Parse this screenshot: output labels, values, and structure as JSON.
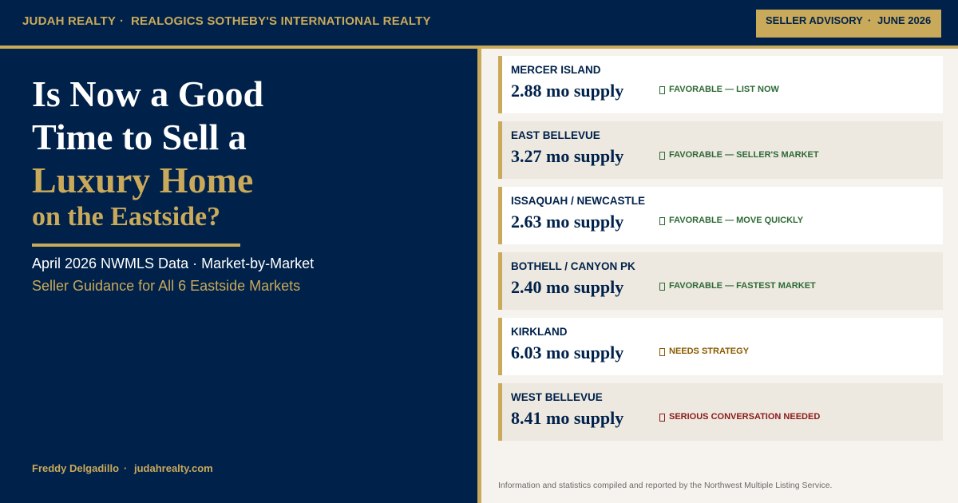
{
  "header": {
    "brand": "JUDAH REALTY",
    "separator": "·",
    "affiliate": "REALOGICS SOTHEBY'S INTERNATIONAL REALTY",
    "badge": {
      "label": "SELLER ADVISORY",
      "date": "JUNE 2026"
    }
  },
  "hero": {
    "title_lines": [
      "Is Now a Good",
      "Time to Sell a"
    ],
    "highlight": "Luxury Home",
    "tail": "on the Eastside?",
    "subtitle": "April 2026 NWMLS Data · Market-by-Market",
    "tagline": "Seller Guidance for All 6 Eastside Markets"
  },
  "footer": {
    "author": "Freddy Delgadillo",
    "site": "judahrealty.com"
  },
  "markets": [
    {
      "name": "MERCER ISLAND",
      "supply": "2.88 mo supply",
      "status": "FAVORABLE — LIST NOW",
      "status_color": "#2d6a35"
    },
    {
      "name": "EAST BELLEVUE",
      "supply": "3.27 mo supply",
      "status": "FAVORABLE — SELLER'S MARKET",
      "status_color": "#2d6a35"
    },
    {
      "name": "ISSAQUAH / NEWCASTLE",
      "supply": "2.63 mo supply",
      "status": "FAVORABLE — MOVE QUICKLY",
      "status_color": "#2d6a35"
    },
    {
      "name": "BOTHELL / CANYON PK",
      "supply": "2.40 mo supply",
      "status": "FAVORABLE — FASTEST MARKET",
      "status_color": "#2d6a35"
    },
    {
      "name": "KIRKLAND",
      "supply": "6.03 mo supply",
      "status": "NEEDS STRATEGY",
      "status_color": "#8a5a00"
    },
    {
      "name": "WEST BELLEVUE",
      "supply": "8.41 mo supply",
      "status": "SERIOUS CONVERSATION NEEDED",
      "status_color": "#8b1a1a"
    }
  ],
  "disclaimer": "Information and statistics compiled and reported by the Northwest Multiple Listing Service."
}
